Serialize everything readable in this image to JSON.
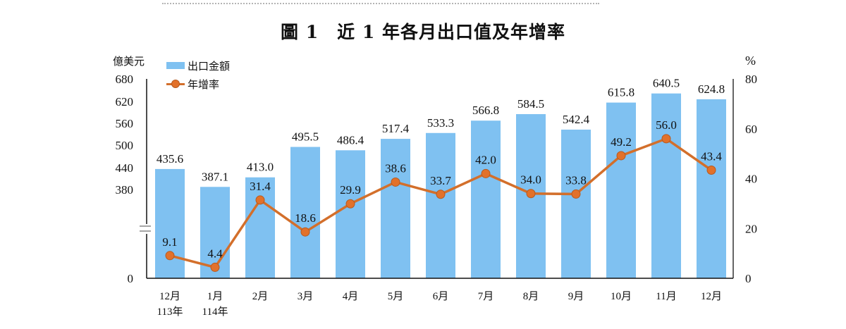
{
  "figure": {
    "title": "圖 1　近 1 年各月出口值及年增率",
    "left_unit": "億美元",
    "right_unit": "%",
    "legend": [
      {
        "label": "出口金額",
        "type": "bar",
        "color": "#7fc1f1"
      },
      {
        "label": "年增率",
        "type": "line",
        "color": "#d36f2b"
      }
    ]
  },
  "chart_data": {
    "type": "bar+line",
    "title": "圖 1　近 1 年各月出口值及年增率",
    "categories": [
      "12月 113年",
      "1月 114年",
      "2月",
      "3月",
      "4月",
      "5月",
      "6月",
      "7月",
      "8月",
      "9月",
      "10月",
      "11月",
      "12月"
    ],
    "category_labels": [
      {
        "line1": "12月",
        "line2": "113年"
      },
      {
        "line1": "1月",
        "line2": "114年"
      },
      {
        "line1": "2月",
        "line2": ""
      },
      {
        "line1": "3月",
        "line2": ""
      },
      {
        "line1": "4月",
        "line2": ""
      },
      {
        "line1": "5月",
        "line2": ""
      },
      {
        "line1": "6月",
        "line2": ""
      },
      {
        "line1": "7月",
        "line2": ""
      },
      {
        "line1": "8月",
        "line2": ""
      },
      {
        "line1": "9月",
        "line2": ""
      },
      {
        "line1": "10月",
        "line2": ""
      },
      {
        "line1": "11月",
        "line2": ""
      },
      {
        "line1": "12月",
        "line2": ""
      }
    ],
    "series": [
      {
        "name": "出口金額",
        "type": "bar",
        "axis": "left",
        "color": "#7fc1f1",
        "values": [
          435.6,
          387.1,
          413.0,
          495.5,
          486.4,
          517.4,
          533.3,
          566.8,
          584.5,
          542.4,
          615.8,
          640.5,
          624.8
        ]
      },
      {
        "name": "年增率",
        "type": "line",
        "axis": "right",
        "color": "#d36f2b",
        "values": [
          9.1,
          4.4,
          31.4,
          18.6,
          29.9,
          38.6,
          33.7,
          42.0,
          34.0,
          33.8,
          49.2,
          56.0,
          43.4
        ]
      }
    ],
    "ylabel_left": "億美元",
    "ylabel_right": "%",
    "y_left_ticks": [
      "680",
      "620",
      "560",
      "500",
      "440",
      "380",
      "0"
    ],
    "y_left_range": [
      380,
      680
    ],
    "y_left_axis_break": true,
    "y_right_ticks": [
      "80",
      "60",
      "40",
      "20",
      "0"
    ],
    "y_right_range": [
      0,
      80
    ],
    "grid": false,
    "legend_position": "top-left"
  }
}
